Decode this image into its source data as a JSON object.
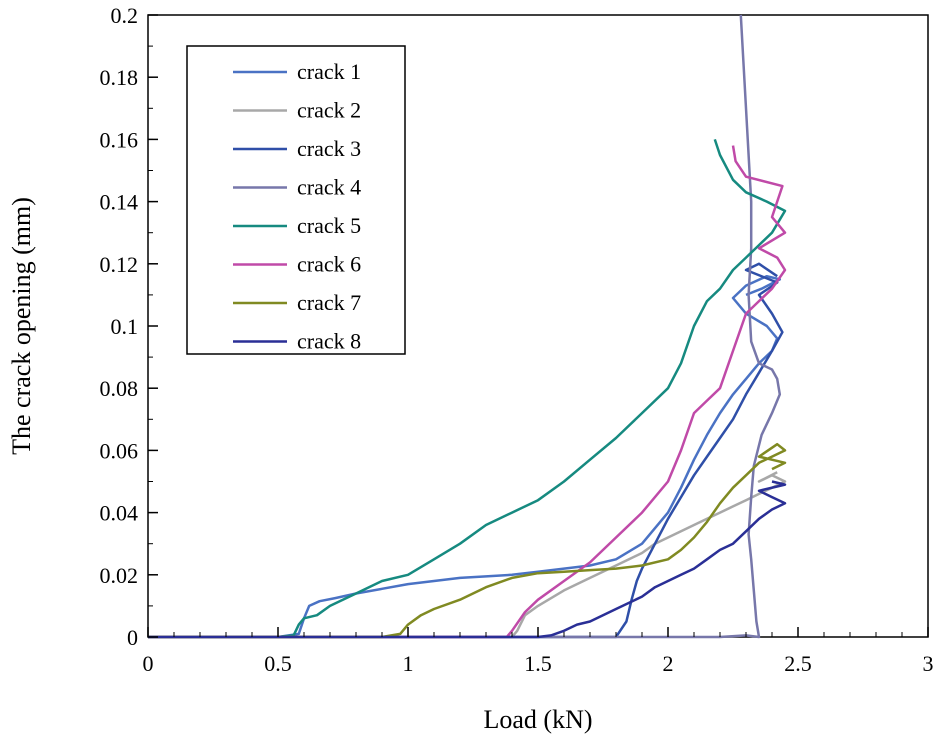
{
  "chart_data": {
    "type": "line",
    "title": "",
    "xlabel": "Load (kN)",
    "ylabel": "The crack opening (mm)",
    "xlim": [
      0,
      3
    ],
    "ylim": [
      0,
      0.2
    ],
    "xticks": [
      0,
      0.5,
      1,
      1.5,
      2,
      2.5,
      3
    ],
    "xtick_labels": [
      "0",
      "0.5",
      "1",
      "1.5",
      "2",
      "2.5",
      "3"
    ],
    "yticks": [
      0,
      0.02,
      0.04,
      0.06,
      0.08,
      0.1,
      0.12,
      0.14,
      0.16,
      0.18,
      0.2
    ],
    "ytick_labels": [
      "0",
      "0.02",
      "0.04",
      "0.06",
      "0.08",
      "0.1",
      "0.12",
      "0.14",
      "0.16",
      "0.18",
      "0.2"
    ],
    "grid": false,
    "legend_position": "top-left",
    "series": [
      {
        "name": "crack 1",
        "color": "#4a72c4",
        "x": [
          0,
          0.5,
          0.58,
          0.6,
          0.62,
          0.66,
          0.72,
          0.8,
          0.9,
          1.0,
          1.1,
          1.2,
          1.3,
          1.4,
          1.5,
          1.6,
          1.7,
          1.8,
          1.9,
          2.0,
          2.05,
          2.1,
          2.15,
          2.2,
          2.25,
          2.3,
          2.35,
          2.4,
          2.42,
          2.38,
          2.3,
          2.25,
          2.3,
          2.38,
          2.43,
          2.36,
          2.3
        ],
        "y": [
          0,
          0,
          0.001,
          0.006,
          0.01,
          0.0115,
          0.0125,
          0.014,
          0.0155,
          0.017,
          0.018,
          0.019,
          0.0195,
          0.02,
          0.021,
          0.022,
          0.023,
          0.025,
          0.03,
          0.04,
          0.048,
          0.057,
          0.065,
          0.072,
          0.078,
          0.083,
          0.088,
          0.092,
          0.096,
          0.1,
          0.104,
          0.109,
          0.113,
          0.116,
          0.115,
          0.112,
          0.11
        ]
      },
      {
        "name": "crack 2",
        "color": "#a8a8a8",
        "x": [
          0,
          1.4,
          1.42,
          1.45,
          1.5,
          1.6,
          1.7,
          1.8,
          1.85,
          1.9,
          1.95,
          2.0,
          2.05,
          2.1,
          2.15,
          2.2,
          2.25,
          2.3,
          2.35,
          2.4,
          2.45,
          2.4,
          2.35,
          2.42
        ],
        "y": [
          0,
          0,
          0.002,
          0.007,
          0.01,
          0.015,
          0.019,
          0.023,
          0.025,
          0.027,
          0.03,
          0.032,
          0.034,
          0.036,
          0.038,
          0.04,
          0.042,
          0.044,
          0.046,
          0.048,
          0.05,
          0.052,
          0.05,
          0.053
        ]
      },
      {
        "name": "crack 3",
        "color": "#2f4fa8",
        "x": [
          0,
          1.8,
          1.84,
          1.86,
          1.88,
          1.9,
          1.95,
          2.0,
          2.05,
          2.1,
          2.15,
          2.2,
          2.25,
          2.3,
          2.35,
          2.4,
          2.44,
          2.4,
          2.35,
          2.42,
          2.3,
          2.35,
          2.42
        ],
        "y": [
          0,
          0,
          0.005,
          0.012,
          0.018,
          0.022,
          0.03,
          0.038,
          0.045,
          0.052,
          0.058,
          0.064,
          0.07,
          0.078,
          0.085,
          0.092,
          0.098,
          0.104,
          0.11,
          0.114,
          0.118,
          0.12,
          0.116
        ]
      },
      {
        "name": "crack 4",
        "color": "#7777aa",
        "x": [
          0,
          2.2,
          2.3,
          2.35,
          2.34,
          2.33,
          2.32,
          2.31,
          2.32,
          2.33,
          2.36,
          2.4,
          2.43,
          2.42,
          2.4,
          2.35,
          2.32,
          2.31,
          2.32,
          2.32,
          2.31,
          2.3,
          2.29,
          2.28
        ],
        "y": [
          0,
          0,
          0.0005,
          0,
          0.005,
          0.015,
          0.025,
          0.033,
          0.045,
          0.055,
          0.065,
          0.072,
          0.078,
          0.083,
          0.086,
          0.088,
          0.095,
          0.11,
          0.125,
          0.14,
          0.155,
          0.17,
          0.185,
          0.2
        ]
      },
      {
        "name": "crack 5",
        "color": "#168a80",
        "x": [
          0,
          0.5,
          0.56,
          0.58,
          0.6,
          0.65,
          0.7,
          0.8,
          0.9,
          1.0,
          1.1,
          1.2,
          1.3,
          1.4,
          1.5,
          1.6,
          1.7,
          1.8,
          1.9,
          2.0,
          2.05,
          2.1,
          2.15,
          2.2,
          2.25,
          2.3,
          2.35,
          2.4,
          2.45,
          2.38,
          2.3,
          2.25,
          2.2,
          2.18
        ],
        "y": [
          0,
          0,
          0.0005,
          0.004,
          0.006,
          0.007,
          0.01,
          0.014,
          0.018,
          0.02,
          0.025,
          0.03,
          0.036,
          0.04,
          0.044,
          0.05,
          0.057,
          0.064,
          0.072,
          0.08,
          0.088,
          0.1,
          0.108,
          0.112,
          0.118,
          0.122,
          0.126,
          0.13,
          0.137,
          0.14,
          0.143,
          0.147,
          0.155,
          0.16
        ]
      },
      {
        "name": "crack 6",
        "color": "#c04aa8",
        "x": [
          0,
          1.38,
          1.4,
          1.45,
          1.5,
          1.6,
          1.7,
          1.8,
          1.9,
          2.0,
          2.05,
          2.1,
          2.15,
          2.2,
          2.25,
          2.3,
          2.35,
          2.4,
          2.45,
          2.42,
          2.35,
          2.45,
          2.4,
          2.44,
          2.3,
          2.26,
          2.25
        ],
        "y": [
          0,
          0,
          0.002,
          0.008,
          0.012,
          0.018,
          0.024,
          0.032,
          0.04,
          0.05,
          0.06,
          0.072,
          0.076,
          0.08,
          0.092,
          0.104,
          0.108,
          0.112,
          0.118,
          0.122,
          0.125,
          0.13,
          0.135,
          0.145,
          0.148,
          0.153,
          0.158
        ]
      },
      {
        "name": "crack 7",
        "color": "#808a22",
        "x": [
          0,
          0.9,
          0.97,
          1.0,
          1.05,
          1.1,
          1.2,
          1.3,
          1.4,
          1.5,
          1.6,
          1.7,
          1.8,
          1.9,
          2.0,
          2.05,
          2.1,
          2.15,
          2.2,
          2.25,
          2.3,
          2.35,
          2.4,
          2.45,
          2.42,
          2.35,
          2.45,
          2.4
        ],
        "y": [
          0,
          0,
          0.001,
          0.004,
          0.007,
          0.009,
          0.012,
          0.016,
          0.019,
          0.0205,
          0.021,
          0.0215,
          0.022,
          0.023,
          0.025,
          0.028,
          0.032,
          0.037,
          0.043,
          0.048,
          0.052,
          0.056,
          0.058,
          0.06,
          0.062,
          0.058,
          0.056,
          0.054
        ]
      },
      {
        "name": "crack 8",
        "color": "#2a2f96",
        "x": [
          0,
          1.5,
          1.55,
          1.6,
          1.65,
          1.7,
          1.8,
          1.9,
          1.95,
          2.0,
          2.05,
          2.1,
          2.15,
          2.2,
          2.25,
          2.3,
          2.35,
          2.4,
          2.45,
          2.4,
          2.35,
          2.45,
          2.4
        ],
        "y": [
          0,
          0,
          0.0005,
          0.002,
          0.004,
          0.005,
          0.009,
          0.013,
          0.016,
          0.018,
          0.02,
          0.022,
          0.025,
          0.028,
          0.03,
          0.034,
          0.038,
          0.041,
          0.043,
          0.045,
          0.047,
          0.049,
          0.05
        ]
      }
    ]
  }
}
